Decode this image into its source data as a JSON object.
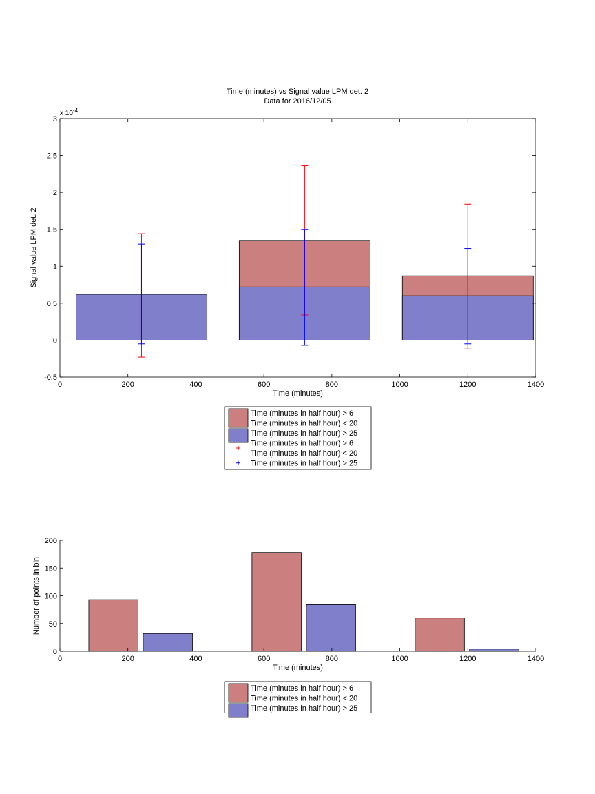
{
  "chart_data": [
    {
      "type": "bar",
      "title": "Time (minutes) vs Signal value LPM det. 2",
      "subtitle": "Data for 2016/12/05",
      "xlabel": "Time (minutes)",
      "ylabel": "Signal value LPM det. 2",
      "exponent_base": "x 10",
      "exponent_power": "-4",
      "xlim": [
        0,
        1400
      ],
      "ylim": [
        -0.5,
        3
      ],
      "xticks": [
        "0",
        "200",
        "400",
        "600",
        "800",
        "1000",
        "1200",
        "1400"
      ],
      "yticks": [
        "-0.5",
        "0",
        "0.5",
        "1",
        "1.5",
        "2",
        "2.5",
        "3"
      ],
      "x": [
        240,
        720,
        1200
      ],
      "bar_width": 385,
      "series": [
        {
          "name": "Time (minutes in half hour) > 6\nTime (minutes in half hour) < 20",
          "color": "#cc7f7f",
          "values": [
            0.62,
            1.35,
            0.87
          ]
        },
        {
          "name": "Time (minutes in half hour) > 25",
          "color": "#7f7fcc",
          "values": [
            0.62,
            0.72,
            0.6
          ]
        }
      ],
      "error_bars": [
        {
          "name": "Time (minutes in half hour) > 6\nTime (minutes in half hour) < 20",
          "color": "#ff0000",
          "lower": [
            -0.23,
            0.34,
            -0.12
          ],
          "upper": [
            1.44,
            2.36,
            1.84
          ]
        },
        {
          "name": "Time (minutes in half hour) > 25",
          "color": "#0000ff",
          "lower": [
            -0.05,
            -0.07,
            -0.05
          ],
          "upper": [
            1.3,
            1.5,
            1.24
          ]
        }
      ],
      "legend": [
        {
          "kind": "patch",
          "color": "#cc7f7f",
          "lines": [
            "Time (minutes in half hour) > 6",
            "Time (minutes in half hour) < 20"
          ]
        },
        {
          "kind": "patch",
          "color": "#7f7fcc",
          "lines": [
            "Time (minutes in half hour) > 25"
          ]
        },
        {
          "kind": "marker",
          "color": "#ff0000",
          "lines": [
            "Time (minutes in half hour) > 6",
            "Time (minutes in half hour) < 20"
          ]
        },
        {
          "kind": "marker",
          "color": "#0000ff",
          "lines": [
            "Time (minutes in half hour) > 25"
          ]
        }
      ],
      "legend_placement": "below"
    },
    {
      "type": "bar",
      "xlabel": "Time (minutes)",
      "ylabel": "Number of points in bin",
      "xlim": [
        0,
        1400
      ],
      "ylim": [
        0,
        200
      ],
      "xticks": [
        "0",
        "200",
        "400",
        "600",
        "800",
        "1000",
        "1200",
        "1400"
      ],
      "yticks": [
        "0",
        "50",
        "100",
        "150",
        "200"
      ],
      "bars": [
        {
          "series": 0,
          "x0": 85,
          "x1": 230,
          "value": 93
        },
        {
          "series": 1,
          "x0": 245,
          "x1": 390,
          "value": 32
        },
        {
          "series": 0,
          "x0": 565,
          "x1": 710,
          "value": 178
        },
        {
          "series": 1,
          "x0": 725,
          "x1": 870,
          "value": 84
        },
        {
          "series": 0,
          "x0": 1045,
          "x1": 1190,
          "value": 60
        },
        {
          "series": 1,
          "x0": 1205,
          "x1": 1350,
          "value": 4
        }
      ],
      "series": [
        {
          "name": "Time (minutes in half hour) > 6\nTime (minutes in half hour) < 20",
          "color": "#cc7f7f"
        },
        {
          "name": "Time (minutes in half hour) > 25",
          "color": "#7f7fcc"
        }
      ],
      "legend": [
        {
          "kind": "patch",
          "color": "#cc7f7f",
          "lines": [
            "Time (minutes in half hour) > 6",
            "Time (minutes in half hour) < 20"
          ]
        },
        {
          "kind": "patch",
          "color": "#7f7fcc",
          "lines": [
            "Time (minutes in half hour) > 25"
          ]
        }
      ],
      "legend_placement": "below"
    }
  ]
}
